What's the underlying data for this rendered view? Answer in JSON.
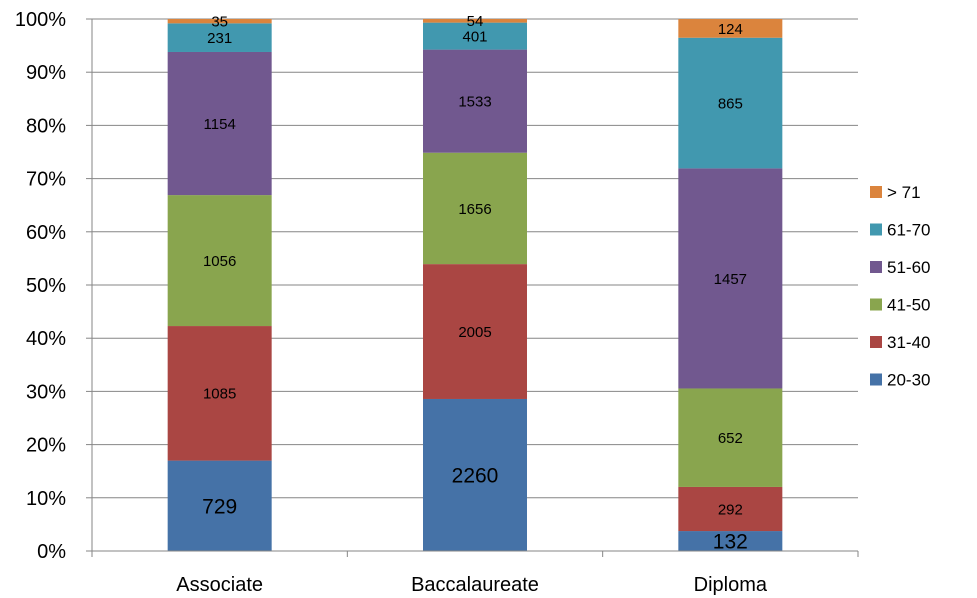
{
  "chart_data": {
    "type": "bar",
    "stacked": "percent",
    "title": "",
    "xlabel": "",
    "ylabel": "",
    "ylim": [
      0,
      100
    ],
    "yticks": [
      "0%",
      "10%",
      "20%",
      "30%",
      "40%",
      "50%",
      "60%",
      "70%",
      "80%",
      "90%",
      "100%"
    ],
    "grid": true,
    "legend_position": "right",
    "categories": [
      "Associate",
      "Baccalaureate",
      "Diploma"
    ],
    "series": [
      {
        "name": "20-30",
        "color": "#4572A7",
        "values": [
          729,
          2260,
          132
        ],
        "labels": [
          "729",
          "2260",
          "132"
        ]
      },
      {
        "name": "31-40",
        "color": "#AA4643",
        "values": [
          1085,
          2005,
          292
        ],
        "labels": [
          "1085",
          "2005",
          "292"
        ]
      },
      {
        "name": "41-50",
        "color": "#89A54E",
        "values": [
          1056,
          1656,
          652
        ],
        "labels": [
          "1056",
          "1656",
          "652"
        ]
      },
      {
        "name": "51-60",
        "color": "#71588F",
        "values": [
          1154,
          1533,
          1457
        ],
        "labels": [
          "1154",
          "1533",
          "1457"
        ]
      },
      {
        "name": "61-70",
        "color": "#4198AF",
        "values": [
          231,
          401,
          865
        ],
        "labels": [
          "231",
          "401",
          "865"
        ]
      },
      {
        "name": "> 71",
        "color": "#DB843D",
        "values": [
          35,
          54,
          124
        ],
        "labels": [
          "35",
          "54",
          "124"
        ]
      }
    ]
  }
}
